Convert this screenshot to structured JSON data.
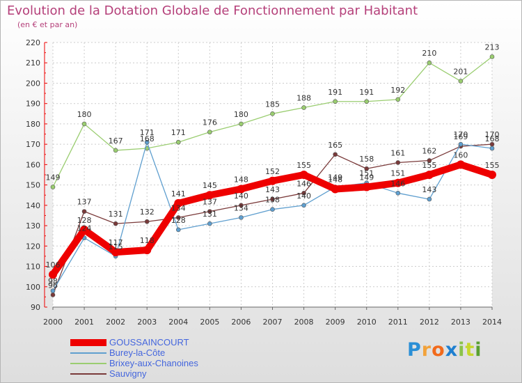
{
  "chart_data": {
    "type": "line",
    "title": "Evolution de la Dotation Globale de Fonctionnement par Habitant",
    "subtitle": "(en € et par an)",
    "x": [
      "2000",
      "2001",
      "2002",
      "2003",
      "2004",
      "2005",
      "2006",
      "2007",
      "2008",
      "2009",
      "2010",
      "2011",
      "2012",
      "2013",
      "2014"
    ],
    "ylim": [
      90,
      220
    ],
    "yticks": [
      90,
      100,
      110,
      120,
      130,
      140,
      150,
      160,
      170,
      180,
      190,
      200,
      210,
      220
    ],
    "grid": true,
    "legend_position": "bottom-left",
    "series": [
      {
        "name": "GOUSSAINCOURT",
        "color": "#ee0000",
        "values": [
          106,
          128,
          117,
          118,
          141,
          145,
          148,
          152,
          155,
          148,
          149,
          151,
          155,
          160,
          155
        ]
      },
      {
        "name": "Burey-la-Côte",
        "color": "#5f9fcf",
        "values": [
          98,
          124,
          115,
          171,
          128,
          131,
          134,
          138,
          140,
          149,
          151,
          146,
          143,
          170,
          168
        ]
      },
      {
        "name": "Brixey-aux-Chanoines",
        "color": "#9acd70",
        "values": [
          149,
          180,
          167,
          168,
          171,
          176,
          180,
          185,
          188,
          191,
          191,
          192,
          210,
          201,
          213
        ]
      },
      {
        "name": "Sauvigny",
        "color": "#7a3a3a",
        "values": [
          96,
          137,
          131,
          132,
          134,
          137,
          140,
          143,
          146,
          165,
          158,
          161,
          162,
          169,
          170
        ]
      }
    ]
  },
  "brand": {
    "letters": [
      "P",
      "r",
      "o",
      "x",
      "i",
      "t",
      "i"
    ],
    "colors": [
      "#2a8fd6",
      "#f2a23a",
      "#f26a1b",
      "#1e7fd0",
      "#8bc34a",
      "#c7d72e",
      "#5aa032"
    ]
  }
}
